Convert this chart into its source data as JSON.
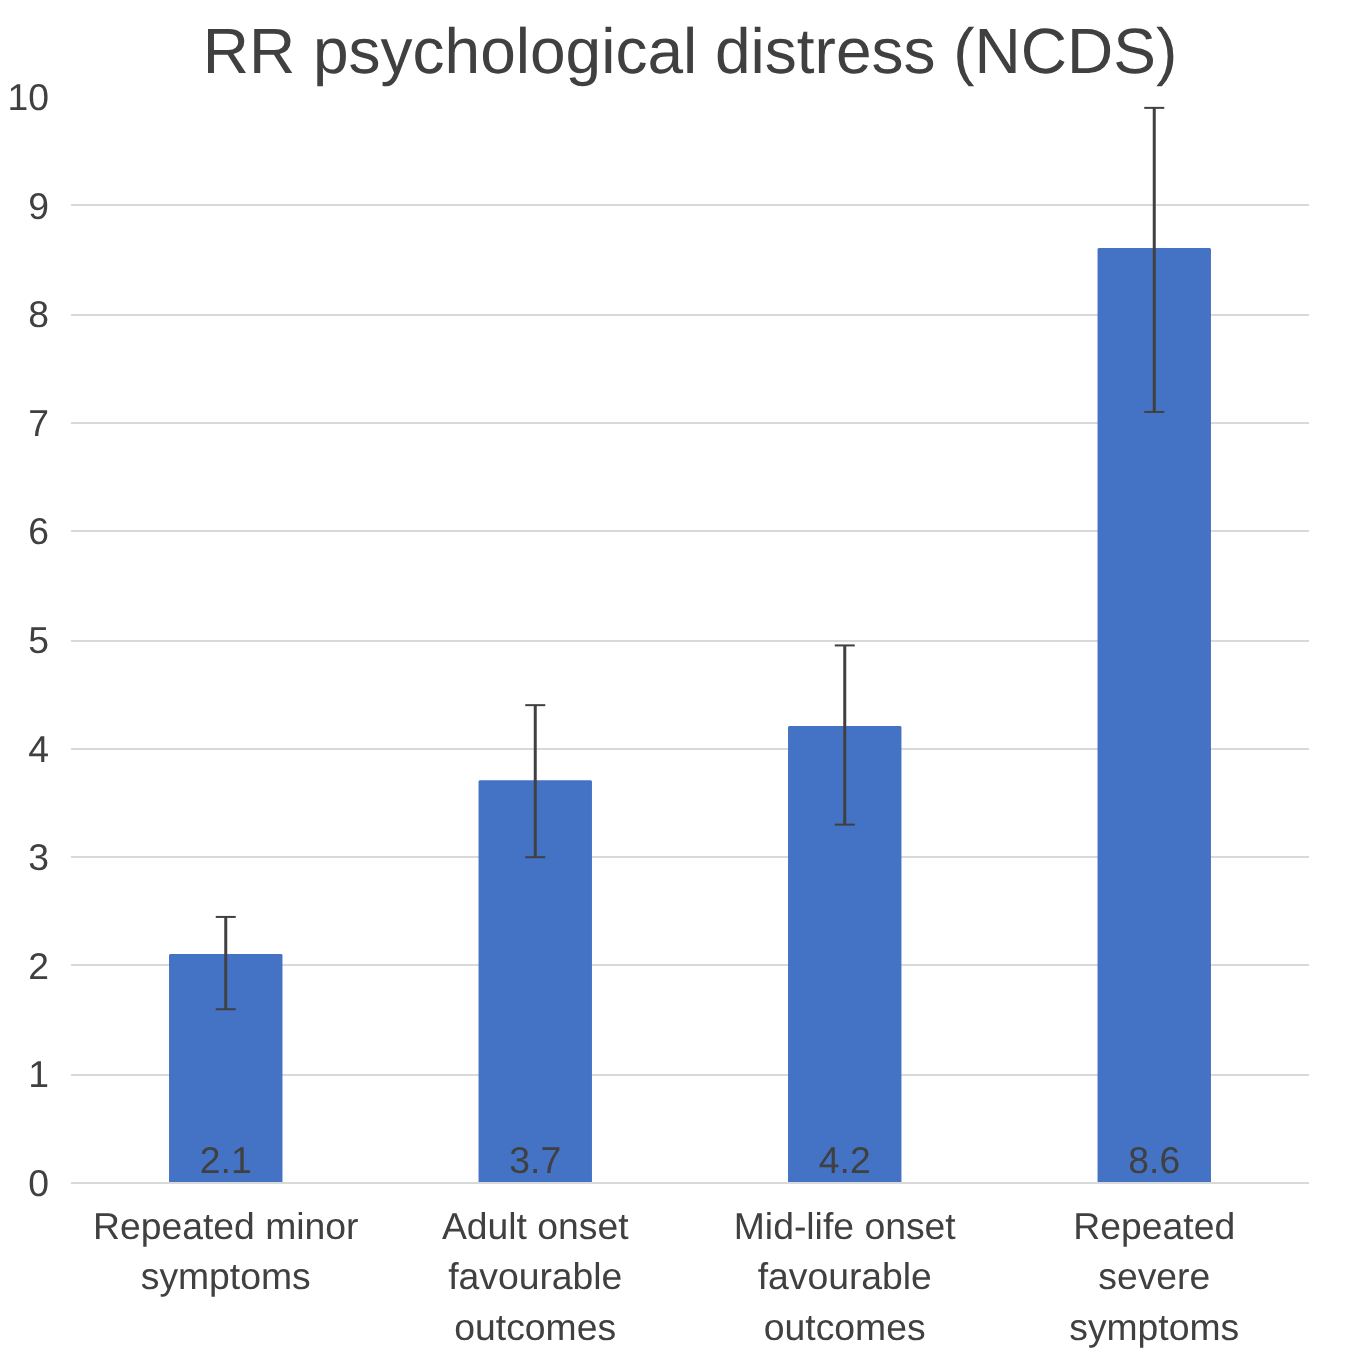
{
  "chart_data": {
    "type": "bar",
    "title": "RR psychological distress (NCDS)",
    "categories": [
      "Repeated minor symptoms",
      "Adult onset favourable outcomes",
      "Mid-life onset favourable outcomes",
      "Repeated severe symptoms"
    ],
    "values": [
      2.1,
      3.7,
      4.2,
      8.6
    ],
    "errors": [
      [
        1.6,
        2.45
      ],
      [
        3.0,
        4.4
      ],
      [
        3.3,
        4.95
      ],
      [
        7.1,
        9.9
      ]
    ],
    "color": "#4472c4",
    "ylim": [
      0,
      10
    ],
    "yticks": [
      0,
      1,
      2,
      3,
      4,
      5,
      6,
      7,
      8,
      9,
      10
    ],
    "grid": "y",
    "data_labels": true
  }
}
